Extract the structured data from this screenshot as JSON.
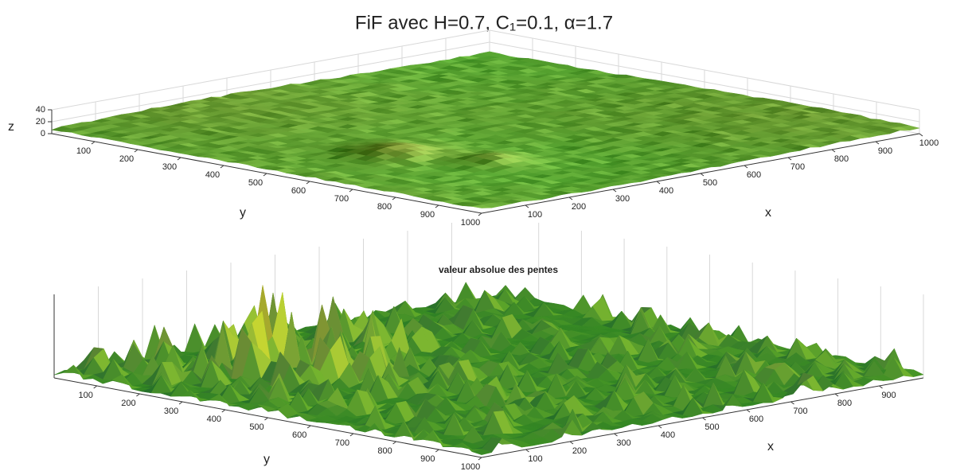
{
  "chart_data": [
    {
      "type": "surface",
      "title": "FiF  avec H=0.7, C₁=0.1, α=1.7",
      "xlabel": "x",
      "ylabel": "y",
      "zlabel": "z",
      "xlim": [
        0,
        1000
      ],
      "ylim": [
        0,
        1000
      ],
      "zlim": [
        0,
        40
      ],
      "xticks": [
        100,
        200,
        300,
        400,
        500,
        600,
        700,
        800,
        900,
        1000
      ],
      "yticks": [
        100,
        200,
        300,
        400,
        500,
        600,
        700,
        800,
        900,
        1000
      ],
      "zticks": [
        0,
        20,
        40
      ],
      "grid": true
    },
    {
      "type": "surface",
      "title": "valeur absolue des pentes",
      "xlabel": "x",
      "ylabel": "y",
      "xlim": [
        0,
        1000
      ],
      "ylim": [
        0,
        1000
      ],
      "xticks": [
        100,
        200,
        300,
        400,
        500,
        600,
        700,
        800,
        900
      ],
      "yticks": [
        100,
        200,
        300,
        400,
        500,
        600,
        700,
        800,
        900,
        1000
      ],
      "grid": true
    }
  ]
}
